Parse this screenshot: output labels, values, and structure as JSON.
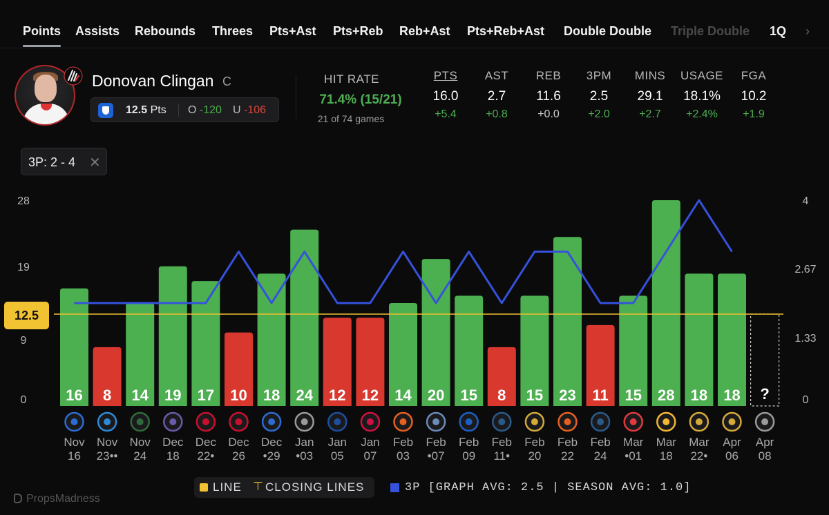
{
  "tabs": [
    {
      "label": "Points",
      "state": "active"
    },
    {
      "label": "Assists"
    },
    {
      "label": "Rebounds"
    },
    {
      "label": "Threes"
    },
    {
      "label": "Pts+Ast"
    },
    {
      "label": "Pts+Reb"
    },
    {
      "label": "Reb+Ast"
    },
    {
      "label": "Pts+Reb+Ast"
    },
    {
      "label": "Double Double"
    },
    {
      "label": "Triple Double",
      "state": "faded"
    },
    {
      "label": "1Q"
    }
  ],
  "tabs_more_icon": "chevron-right-icon",
  "player": {
    "name": "Donovan Clingan",
    "position": "C",
    "team_logo_icon": "trail-blazers-logo",
    "line": "12.5",
    "line_unit": "Pts",
    "over_label": "O",
    "over_odds": "-120",
    "under_label": "U",
    "under_odds": "-106",
    "book_icon": "fanduel-icon"
  },
  "hit_rate": {
    "label": "HIT RATE",
    "value": "71.4% (15/21)",
    "sub": "21 of 74 games"
  },
  "stats": [
    {
      "label": "PTS",
      "value": "16.0",
      "diff": "+5.4",
      "tone": "pos"
    },
    {
      "label": "AST",
      "value": "2.7",
      "diff": "+0.8",
      "tone": "pos"
    },
    {
      "label": "REB",
      "value": "11.6",
      "diff": "+0.0",
      "tone": "neutral"
    },
    {
      "label": "3PM",
      "value": "2.5",
      "diff": "+2.0",
      "tone": "pos"
    },
    {
      "label": "MINS",
      "value": "29.1",
      "diff": "+2.7",
      "tone": "pos"
    },
    {
      "label": "USAGE",
      "value": "18.1%",
      "diff": "+2.4%",
      "tone": "pos"
    },
    {
      "label": "FGA",
      "value": "10.2",
      "diff": "+1.9",
      "tone": "pos"
    }
  ],
  "filter_chip": {
    "label": "3P: 2 - 4",
    "close_icon": "close-icon"
  },
  "line_value_label": "12.5",
  "colors": {
    "over": "#4caf50",
    "under": "#d9382f",
    "line": "#f1c232",
    "threes": "#3652dd"
  },
  "chart_data": {
    "type": "bar",
    "line": 12.5,
    "y_left": {
      "ticks": [
        0,
        9,
        19,
        28
      ],
      "range": [
        0,
        28
      ]
    },
    "y_right": {
      "ticks": [
        "0",
        "1.33",
        "2.67",
        "4"
      ],
      "range": [
        0,
        4
      ]
    },
    "games": [
      {
        "month": "Nov",
        "day": "16",
        "pre": "",
        "post": "",
        "pts": 16,
        "threes": 2,
        "opp_icon": "mavericks-logo"
      },
      {
        "month": "Nov",
        "day": "23",
        "pre": "",
        "post": "••",
        "pts": 8,
        "threes": 2,
        "opp_icon": "thunder-logo"
      },
      {
        "month": "Nov",
        "day": "24",
        "pre": "",
        "post": "",
        "pts": 14,
        "threes": 2,
        "opp_icon": "bucks-logo"
      },
      {
        "month": "Dec",
        "day": "18",
        "pre": "",
        "post": "",
        "pts": 19,
        "threes": 2,
        "opp_icon": "kings-logo"
      },
      {
        "month": "Dec",
        "day": "22",
        "pre": "",
        "post": "•",
        "pts": 17,
        "threes": 2,
        "opp_icon": "pistons-logo"
      },
      {
        "month": "Dec",
        "day": "26",
        "pre": "",
        "post": "",
        "pts": 10,
        "threes": 3,
        "opp_icon": "clippers-logo"
      },
      {
        "month": "Dec",
        "day": "29",
        "pre": "•",
        "post": "",
        "pts": 18,
        "threes": 2,
        "opp_icon": "mavericks-logo"
      },
      {
        "month": "Jan",
        "day": "03",
        "pre": "•",
        "post": "",
        "pts": 24,
        "threes": 3,
        "opp_icon": "spurs-logo"
      },
      {
        "month": "Jan",
        "day": "05",
        "pre": "",
        "post": "",
        "pts": 12,
        "threes": 2,
        "opp_icon": "jazz-logo"
      },
      {
        "month": "Jan",
        "day": "07",
        "pre": "",
        "post": "",
        "pts": 12,
        "threes": 2,
        "opp_icon": "rockets-logo"
      },
      {
        "month": "Feb",
        "day": "03",
        "pre": "",
        "post": "",
        "pts": 14,
        "threes": 3,
        "opp_icon": "suns-logo"
      },
      {
        "month": "Feb",
        "day": "07",
        "pre": "•",
        "post": "",
        "pts": 20,
        "threes": 2,
        "opp_icon": "grizzlies-logo"
      },
      {
        "month": "Feb",
        "day": "09",
        "pre": "",
        "post": "",
        "pts": 15,
        "threes": 3,
        "opp_icon": "76ers-logo"
      },
      {
        "month": "Feb",
        "day": "11",
        "pre": "",
        "post": "•",
        "pts": 8,
        "threes": 2,
        "opp_icon": "timberwolves-logo"
      },
      {
        "month": "Feb",
        "day": "20",
        "pre": "",
        "post": "",
        "pts": 15,
        "threes": 3,
        "opp_icon": "nuggets-logo"
      },
      {
        "month": "Feb",
        "day": "22",
        "pre": "",
        "post": "",
        "pts": 23,
        "threes": 3,
        "opp_icon": "suns-logo"
      },
      {
        "month": "Feb",
        "day": "24",
        "pre": "",
        "post": "",
        "pts": 11,
        "threes": 2,
        "opp_icon": "timberwolves-logo"
      },
      {
        "month": "Mar",
        "day": "01",
        "pre": "•",
        "post": "",
        "pts": 15,
        "threes": 2,
        "opp_icon": "hawks-logo"
      },
      {
        "month": "Mar",
        "day": "18",
        "pre": "",
        "post": "",
        "pts": 28,
        "threes": 3,
        "opp_icon": "pacers-logo"
      },
      {
        "month": "Mar",
        "day": "22",
        "pre": "",
        "post": "•",
        "pts": 18,
        "threes": 4,
        "opp_icon": "nuggets-logo"
      },
      {
        "month": "Apr",
        "day": "06",
        "pre": "",
        "post": "",
        "pts": 18,
        "threes": 3,
        "opp_icon": "nuggets-logo"
      },
      {
        "month": "Apr",
        "day": "08",
        "pre": "",
        "post": "",
        "pts": null,
        "threes": null,
        "pending_label": "?",
        "opp_icon": "spurs-logo"
      }
    ]
  },
  "legend": {
    "line_label": "LINE",
    "closing_label": "CLOSING LINES",
    "series_label": "3P [GRAPH AVG: 2.5 | SEASON AVG: 1.0]"
  },
  "brand": "PropsMadness"
}
